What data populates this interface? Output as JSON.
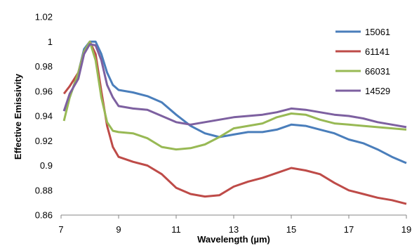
{
  "chart_data": {
    "type": "line",
    "xlabel": "Wavelength (µm)",
    "ylabel": "Effective Emissivity",
    "xlim": [
      7,
      19
    ],
    "ylim": [
      0.86,
      1.02
    ],
    "x_ticks": [
      "7",
      "9",
      "11",
      "13",
      "15",
      "17",
      "19"
    ],
    "y_ticks": [
      "0.86",
      "0.88",
      "0.9",
      "0.92",
      "0.94",
      "0.96",
      "0.98",
      "1",
      "1.02"
    ],
    "grid": false,
    "legend_position": "top-right",
    "x": [
      7.1,
      7.3,
      7.6,
      7.8,
      8.0,
      8.2,
      8.4,
      8.6,
      8.8,
      9.0,
      9.5,
      10.0,
      10.5,
      11.0,
      11.5,
      12.0,
      12.5,
      13.0,
      13.5,
      14.0,
      14.5,
      15.0,
      15.5,
      16.0,
      16.5,
      17.0,
      17.5,
      18.0,
      18.5,
      19.0
    ],
    "series": [
      {
        "name": "15061",
        "color": "#4a7ebb",
        "values": [
          0.944,
          0.955,
          0.975,
          0.994,
          1.0,
          1.0,
          0.99,
          0.975,
          0.965,
          0.961,
          0.959,
          0.956,
          0.951,
          0.941,
          0.932,
          0.926,
          0.923,
          0.925,
          0.927,
          0.927,
          0.929,
          0.933,
          0.932,
          0.929,
          0.926,
          0.921,
          0.918,
          0.913,
          0.907,
          0.902
        ]
      },
      {
        "name": "61141",
        "color": "#be4b48",
        "values": [
          0.958,
          0.964,
          0.975,
          0.992,
          1.0,
          0.99,
          0.96,
          0.932,
          0.915,
          0.907,
          0.903,
          0.9,
          0.893,
          0.882,
          0.877,
          0.875,
          0.876,
          0.883,
          0.887,
          0.89,
          0.894,
          0.898,
          0.896,
          0.893,
          0.886,
          0.88,
          0.877,
          0.874,
          0.872,
          0.869
        ]
      },
      {
        "name": "66031",
        "color": "#98b954",
        "values": [
          0.936,
          0.955,
          0.975,
          0.992,
          1.0,
          0.985,
          0.955,
          0.935,
          0.928,
          0.927,
          0.926,
          0.922,
          0.915,
          0.913,
          0.914,
          0.917,
          0.923,
          0.93,
          0.932,
          0.934,
          0.939,
          0.942,
          0.941,
          0.937,
          0.934,
          0.933,
          0.932,
          0.931,
          0.93,
          0.929
        ]
      },
      {
        "name": "14529",
        "color": "#7d60a0",
        "values": [
          0.944,
          0.958,
          0.97,
          0.99,
          0.998,
          0.997,
          0.985,
          0.965,
          0.955,
          0.948,
          0.946,
          0.945,
          0.94,
          0.935,
          0.933,
          0.935,
          0.937,
          0.939,
          0.94,
          0.941,
          0.943,
          0.946,
          0.945,
          0.943,
          0.941,
          0.94,
          0.938,
          0.935,
          0.933,
          0.931
        ]
      }
    ]
  }
}
